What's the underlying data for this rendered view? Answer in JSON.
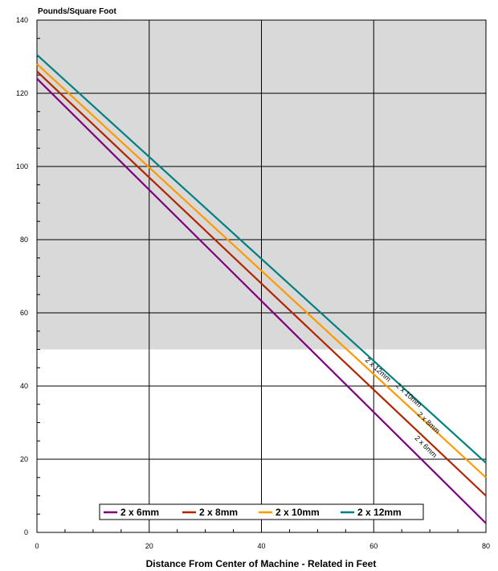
{
  "chart_data": {
    "type": "line",
    "title": "",
    "ylabel": "Pounds/Square Foot",
    "xlabel": "Distance From Center of Machine - Related in Feet",
    "xlim": [
      0,
      80
    ],
    "ylim": [
      0,
      140
    ],
    "x_ticks": [
      0,
      20,
      40,
      60,
      80
    ],
    "y_ticks": [
      0,
      20,
      40,
      60,
      80,
      100,
      120,
      140
    ],
    "grid": true,
    "shaded_region": {
      "y_from": 50,
      "y_to": 140,
      "color": "#d9d9d9"
    },
    "legend_position": "bottom-center",
    "series": [
      {
        "name": "2 x 6mm",
        "color": "#7f007f",
        "x": [
          0,
          80
        ],
        "y": [
          124,
          2.5
        ],
        "label": "2 x 6mm",
        "label_x": 69,
        "label_y": 23
      },
      {
        "name": "2 x 8mm",
        "color": "#b22400",
        "x": [
          0,
          80
        ],
        "y": [
          126,
          10
        ],
        "label": "2 x 8mm",
        "label_x": 69.5,
        "label_y": 29.5
      },
      {
        "name": "2 x 10mm",
        "color": "#ff9900",
        "x": [
          0,
          80
        ],
        "y": [
          128,
          15
        ],
        "label": "2 x 10mm",
        "label_x": 66,
        "label_y": 37
      },
      {
        "name": "2 x 12mm",
        "color": "#008080",
        "x": [
          0,
          80
        ],
        "y": [
          130.5,
          19
        ],
        "label": "2 x 12mm",
        "label_x": 60.5,
        "label_y": 44
      }
    ]
  }
}
